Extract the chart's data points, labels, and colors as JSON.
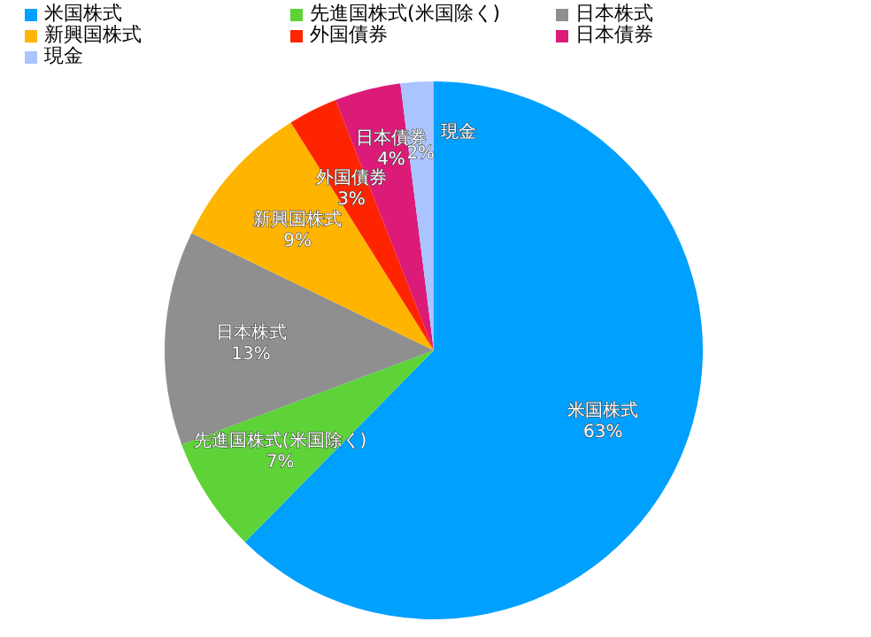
{
  "chart_data": {
    "type": "pie",
    "categories": [
      "米国株式",
      "先進国株式(米国除く)",
      "日本株式",
      "新興国株式",
      "外国債券",
      "日本債券",
      "現金"
    ],
    "values": [
      63,
      7,
      13,
      9,
      3,
      4,
      2
    ],
    "value_labels": [
      "63%",
      "7%",
      "13%",
      "9%",
      "3%",
      "4%",
      "2%"
    ],
    "colors": [
      "#00a0ff",
      "#5ed338",
      "#8f8f8f",
      "#ffb400",
      "#ff2400",
      "#dc1a78",
      "#a9c4ff"
    ],
    "legend": "top"
  }
}
